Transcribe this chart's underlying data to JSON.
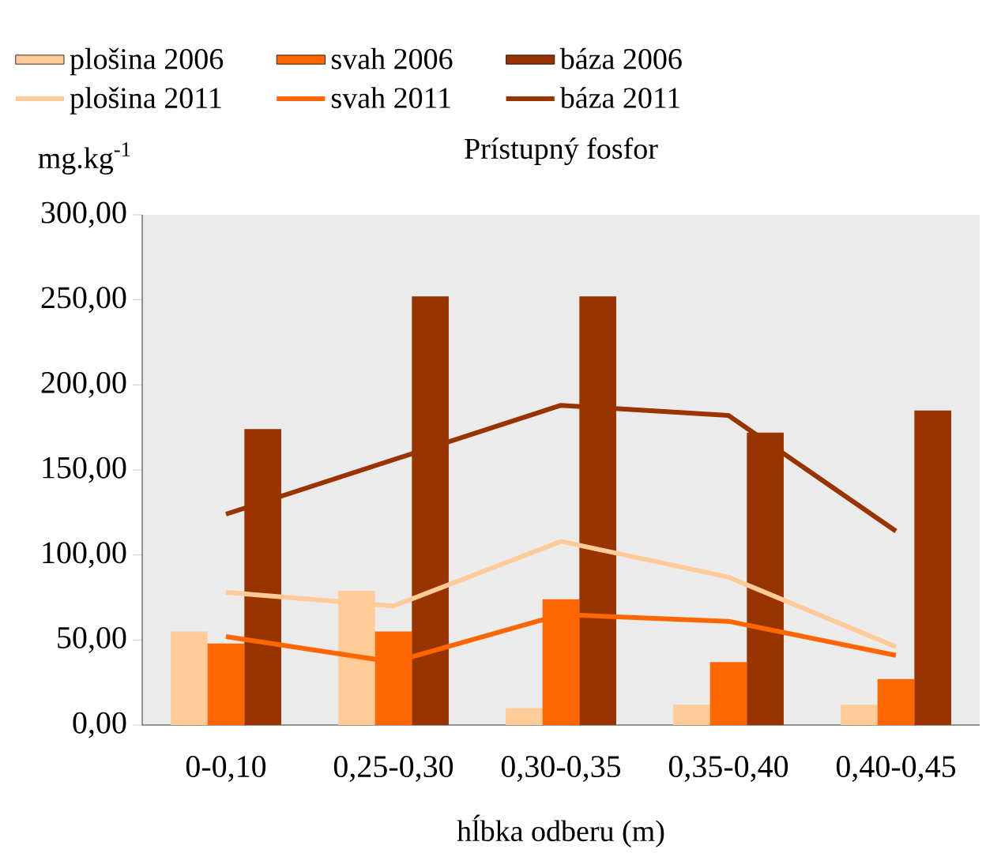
{
  "chart_data": {
    "type": "bar",
    "title": "Prístupný fosfor",
    "ylabel": "mg.kg$^{-1}$",
    "xlabel": "hĺbka odberu (m)",
    "categories": [
      "0-0,10",
      "0,25-0,30",
      "0,30-0,35",
      "0,35-0,40",
      "0,40-0,45"
    ],
    "series": [
      {
        "name": "plošina 2006",
        "color": "#ffcc99",
        "values": [
          55,
          79,
          10,
          12,
          12
        ]
      },
      {
        "name": "svah 2006",
        "color": "#ff6600",
        "values": [
          48,
          55,
          74,
          37,
          27
        ]
      },
      {
        "name": "báza 2006",
        "color": "#993300",
        "values": [
          174,
          252,
          252,
          172,
          185
        ]
      },
      {
        "name": "plošina 2011",
        "type": "line",
        "color": "#ffcc99",
        "values": [
          78,
          70,
          108,
          87,
          46
        ]
      },
      {
        "name": "svah 2011",
        "type": "line",
        "color": "#ff6600",
        "values": [
          52,
          37,
          65,
          61,
          41
        ]
      },
      {
        "name": "báza 2011",
        "type": "line",
        "color": "#993300",
        "values": [
          124,
          156,
          188,
          182,
          114
        ]
      }
    ],
    "ylim": [
      0,
      300
    ],
    "yticks": [
      {
        "value": 0,
        "label": "0,00"
      },
      {
        "value": 50,
        "label": "50,00"
      },
      {
        "value": 100,
        "label": "100,00"
      },
      {
        "value": 150,
        "label": "150,00"
      },
      {
        "value": 200,
        "label": "200,00"
      },
      {
        "value": 250,
        "label": "250,00"
      },
      {
        "value": 300,
        "label": "300,00"
      }
    ],
    "legend": "top",
    "grid": false,
    "marker": "none",
    "line_style": "solid"
  }
}
